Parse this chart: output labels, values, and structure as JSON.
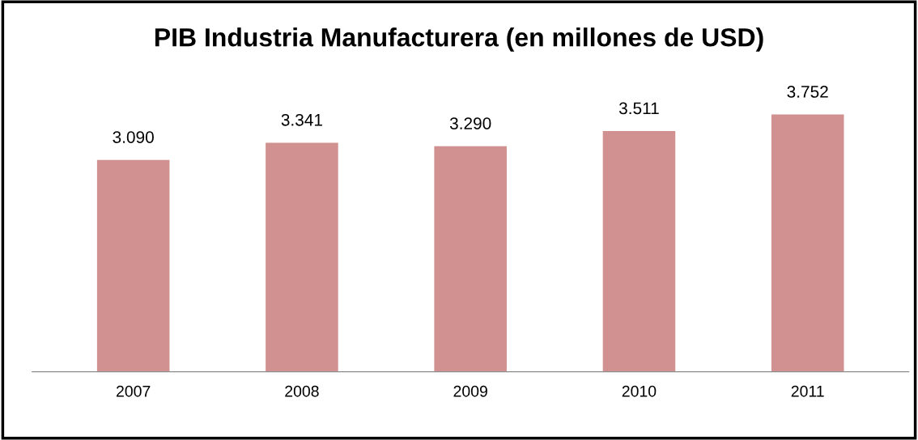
{
  "chart_data": {
    "type": "bar",
    "title": "PIB Industria Manufacturera (en millones de USD)",
    "categories": [
      "2007",
      "2008",
      "2009",
      "2010",
      "2011"
    ],
    "values": [
      3090,
      3341,
      3290,
      3511,
      3752
    ],
    "value_labels": [
      "3.090",
      "3.341",
      "3.290",
      "3.511",
      "3.752"
    ],
    "color": "#d09190",
    "grid": false,
    "legend": false
  }
}
